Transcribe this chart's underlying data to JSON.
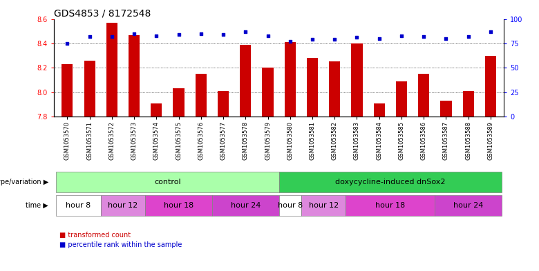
{
  "title": "GDS4853 / 8172548",
  "samples": [
    "GSM1053570",
    "GSM1053571",
    "GSM1053572",
    "GSM1053573",
    "GSM1053574",
    "GSM1053575",
    "GSM1053576",
    "GSM1053577",
    "GSM1053578",
    "GSM1053579",
    "GSM1053580",
    "GSM1053581",
    "GSM1053582",
    "GSM1053583",
    "GSM1053584",
    "GSM1053585",
    "GSM1053586",
    "GSM1053587",
    "GSM1053588",
    "GSM1053589"
  ],
  "bar_values": [
    8.23,
    8.26,
    8.57,
    8.47,
    7.91,
    8.03,
    8.15,
    8.01,
    8.39,
    8.2,
    8.41,
    8.28,
    8.25,
    8.4,
    7.91,
    8.09,
    8.15,
    7.93,
    8.01,
    8.3
  ],
  "percentile_values": [
    75,
    82,
    82,
    85,
    83,
    84,
    85,
    84,
    87,
    83,
    77,
    79,
    79,
    81,
    80,
    83,
    82,
    80,
    82,
    87
  ],
  "bar_color": "#cc0000",
  "dot_color": "#0000cc",
  "ylim_left": [
    7.8,
    8.6
  ],
  "ylim_right": [
    0,
    100
  ],
  "yticks_left": [
    7.8,
    8.0,
    8.2,
    8.4,
    8.6
  ],
  "yticks_right": [
    0,
    25,
    50,
    75,
    100
  ],
  "genotype_groups": [
    {
      "label": "control",
      "start": 0,
      "end": 9,
      "color": "#aaffaa"
    },
    {
      "label": "doxycycline-induced dnSox2",
      "start": 10,
      "end": 19,
      "color": "#33cc55"
    }
  ],
  "time_groups": [
    {
      "label": "hour 8",
      "start": 0,
      "end": 1,
      "color": "#ffffff"
    },
    {
      "label": "hour 12",
      "start": 2,
      "end": 3,
      "color": "#dd88dd"
    },
    {
      "label": "hour 18",
      "start": 4,
      "end": 6,
      "color": "#dd44cc"
    },
    {
      "label": "hour 24",
      "start": 7,
      "end": 9,
      "color": "#cc44cc"
    },
    {
      "label": "hour 8",
      "start": 10,
      "end": 10,
      "color": "#ffffff"
    },
    {
      "label": "hour 12",
      "start": 11,
      "end": 12,
      "color": "#dd88dd"
    },
    {
      "label": "hour 18",
      "start": 13,
      "end": 16,
      "color": "#dd44cc"
    },
    {
      "label": "hour 24",
      "start": 17,
      "end": 19,
      "color": "#cc44cc"
    }
  ],
  "genotype_label": "genotype/variation",
  "time_label": "time",
  "legend_bar": "transformed count",
  "legend_dot": "percentile rank within the sample",
  "bar_width": 0.5,
  "title_fontsize": 10,
  "tick_label_fontsize": 6,
  "annot_fontsize": 8,
  "legend_fontsize": 7
}
